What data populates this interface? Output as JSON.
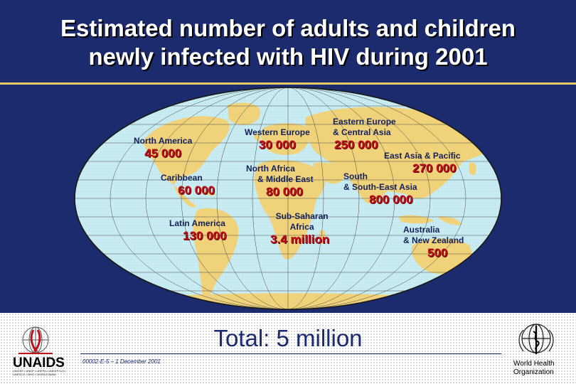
{
  "title": {
    "line1": "Estimated number of adults and children",
    "line2": "newly infected with HIV during 2001"
  },
  "regions": [
    {
      "name1": "North America",
      "name2": "",
      "value": "45 000"
    },
    {
      "name1": "Caribbean",
      "name2": "",
      "value": "60 000"
    },
    {
      "name1": "Latin America",
      "name2": "",
      "value": "130 000"
    },
    {
      "name1": "Western Europe",
      "name2": "",
      "value": "30 000"
    },
    {
      "name1": "North Africa",
      "name2": "& Middle East",
      "value": "80 000"
    },
    {
      "name1": "Sub-Saharan",
      "name2": "Africa",
      "value": "3.4 million"
    },
    {
      "name1": "Eastern Europe",
      "name2": "& Central Asia",
      "value": "250 000"
    },
    {
      "name1": "East Asia & Pacific",
      "name2": "",
      "value": "270 000"
    },
    {
      "name1": "South",
      "name2": "& South-East Asia",
      "value": "800 000"
    },
    {
      "name1": "Australia",
      "name2": "& New Zealand",
      "value": "500"
    }
  ],
  "total": "Total: 5 million",
  "slide_code": "00002-E-5 – 1 December 2001",
  "logos": {
    "unaids": "UNAIDS",
    "unaids_partners": "UNICEF • UNDP • UNFPA • UNDCP ILO • UNESCO • WHO • WORLD BANK",
    "who_line1": "World Health",
    "who_line2": "Organization"
  },
  "colors": {
    "background": "#1c2a6e",
    "ocean": "#c9ecf2",
    "land": "#f0d27a",
    "label": "#14205a",
    "value": "#c0111a",
    "rule": "#e8c867"
  }
}
